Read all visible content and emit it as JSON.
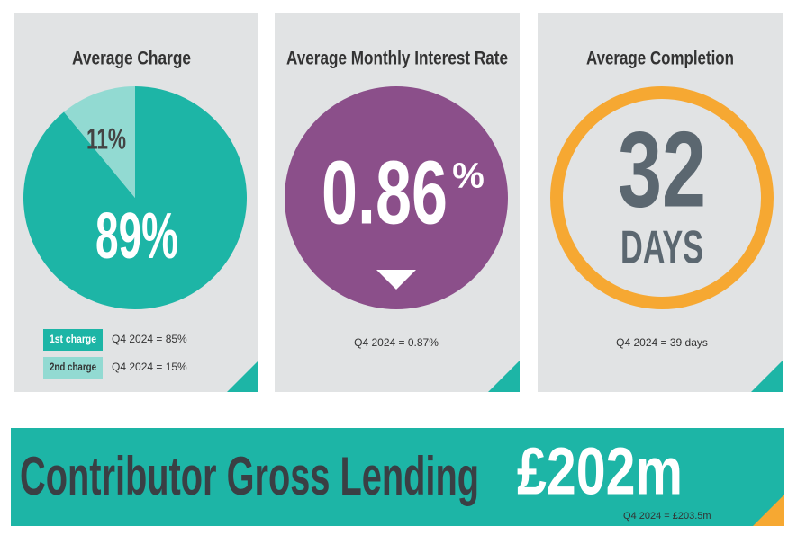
{
  "chart_data": {
    "type": "pie",
    "title": "Average Charge",
    "categories": [
      "1st charge",
      "2nd charge"
    ],
    "values": [
      89,
      11
    ],
    "value_labels": [
      "89%",
      "11%"
    ],
    "colors": [
      "#1db5a6",
      "#92dad2"
    ],
    "annotations": [
      "Q4 2024 = 85%",
      "Q4 2024 = 15%"
    ]
  },
  "interest_card": {
    "title": "Average Monthly Interest Rate",
    "value": "0.86",
    "unit": "%",
    "note": "Q4 2024 = 0.87%"
  },
  "completion_card": {
    "title": "Average Completion",
    "value": "32",
    "unit": "DAYS",
    "note": "Q4 2024 = 39 days"
  },
  "banner": {
    "label": "Contributor Gross Lending",
    "value": "£202m",
    "note": "Q4 2024 = £203.5m"
  }
}
